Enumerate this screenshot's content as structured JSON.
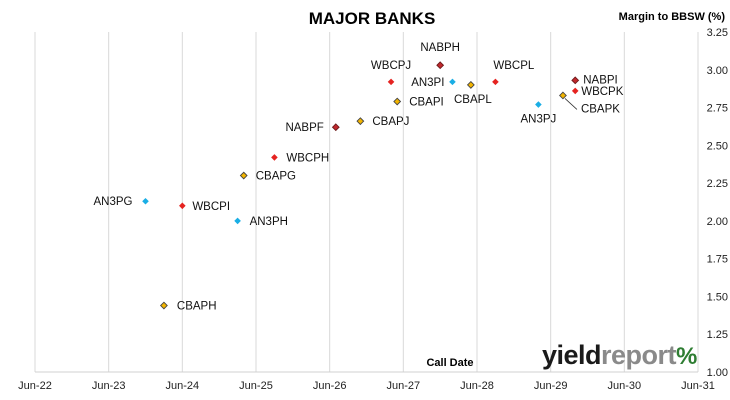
{
  "chart_data": {
    "type": "scatter",
    "title": "MAJOR BANKS",
    "xlabel": "Call Date",
    "ylabel": "Margin to BBSW (%)",
    "x_tick_labels": [
      "Jun-22",
      "Jun-23",
      "Jun-24",
      "Jun-25",
      "Jun-26",
      "Jun-27",
      "Jun-28",
      "Jun-29",
      "Jun-30",
      "Jun-31"
    ],
    "y_tick_labels": [
      "1.00",
      "1.25",
      "1.50",
      "1.75",
      "2.00",
      "2.25",
      "2.50",
      "2.75",
      "3.00",
      "3.25"
    ],
    "xlim": [
      "2022-06",
      "2031-06"
    ],
    "ylim": [
      1.0,
      3.25
    ],
    "grid": "vertical",
    "colors": {
      "NAB": "#c0282d",
      "WBC": "#e52320",
      "ANZ": "#1aaee5",
      "CBA": "#f2b400"
    },
    "points": [
      {
        "label": "CBAPH",
        "issuer": "CBA",
        "x": "2024-03",
        "y": 1.44
      },
      {
        "label": "AN3PG",
        "issuer": "ANZ",
        "x": "2023-12",
        "y": 2.13
      },
      {
        "label": "WBCPI",
        "issuer": "WBC",
        "x": "2024-06",
        "y": 2.1
      },
      {
        "label": "AN3PH",
        "issuer": "ANZ",
        "x": "2025-03",
        "y": 2.0
      },
      {
        "label": "CBAPG",
        "issuer": "CBA",
        "x": "2025-04",
        "y": 2.3
      },
      {
        "label": "WBCPH",
        "issuer": "WBC",
        "x": "2025-09",
        "y": 2.42
      },
      {
        "label": "NABPF",
        "issuer": "NAB",
        "x": "2026-07",
        "y": 2.62
      },
      {
        "label": "CBAPJ",
        "issuer": "CBA",
        "x": "2026-11",
        "y": 2.66
      },
      {
        "label": "CBAPI",
        "issuer": "CBA",
        "x": "2027-05",
        "y": 2.79
      },
      {
        "label": "WBCPJ",
        "issuer": "WBC",
        "x": "2027-04",
        "y": 2.92
      },
      {
        "label": "NABPH",
        "issuer": "NAB",
        "x": "2027-12",
        "y": 3.03
      },
      {
        "label": "AN3PI",
        "issuer": "ANZ",
        "x": "2028-02",
        "y": 2.92
      },
      {
        "label": "CBAPL",
        "issuer": "CBA",
        "x": "2028-05",
        "y": 2.9
      },
      {
        "label": "WBCPL",
        "issuer": "WBC",
        "x": "2028-09",
        "y": 2.92
      },
      {
        "label": "AN3PJ",
        "issuer": "ANZ",
        "x": "2029-04",
        "y": 2.77
      },
      {
        "label": "CBAPK",
        "issuer": "CBA",
        "x": "2029-08",
        "y": 2.83
      },
      {
        "label": "NABPI",
        "issuer": "NAB",
        "x": "2029-10",
        "y": 2.93
      },
      {
        "label": "WBCPK",
        "issuer": "WBC",
        "x": "2029-10",
        "y": 2.86
      }
    ]
  },
  "logo": {
    "part1": "yield",
    "part2": "report",
    "part3": "%"
  }
}
